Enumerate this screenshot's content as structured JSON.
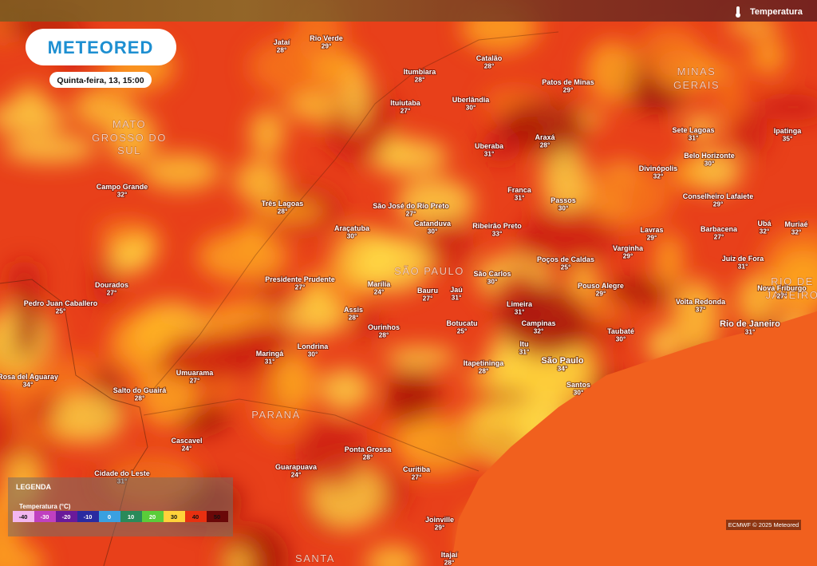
{
  "header": {
    "layer": "Temperatura",
    "logo": "METEORED",
    "datetime": "Quinta-feira, 13, 15:00"
  },
  "regions": [
    "MATO",
    "GROSSO DO",
    "SUL",
    "MINAS",
    "GERAIS",
    "SÃO PAULO",
    "PARANÁ",
    "RIO DE",
    "JANEIRO",
    "SANTA"
  ],
  "cities": [
    {
      "name": "Jataí",
      "temp": "28°"
    },
    {
      "name": "Rio Verde",
      "temp": "29°"
    },
    {
      "name": "Itumbiara",
      "temp": "28°"
    },
    {
      "name": "Catalão",
      "temp": "28°"
    },
    {
      "name": "Patos de Minas",
      "temp": "29°"
    },
    {
      "name": "Ituiutaba",
      "temp": "27°"
    },
    {
      "name": "Uberlândia",
      "temp": "30°"
    },
    {
      "name": "Uberaba",
      "temp": "31°"
    },
    {
      "name": "Araxá",
      "temp": "28°"
    },
    {
      "name": "Sete Lagoas",
      "temp": "31°"
    },
    {
      "name": "Ipatinga",
      "temp": "35°"
    },
    {
      "name": "Belo Horizonte",
      "temp": "30°"
    },
    {
      "name": "Divinópolis",
      "temp": "32°"
    },
    {
      "name": "Campo Grande",
      "temp": "32°"
    },
    {
      "name": "Três Lagoas",
      "temp": "28°"
    },
    {
      "name": "São José do Rio Preto",
      "temp": "27°"
    },
    {
      "name": "Franca",
      "temp": "31°"
    },
    {
      "name": "Passos",
      "temp": "30°"
    },
    {
      "name": "Conselheiro Lafaiete",
      "temp": "29°"
    },
    {
      "name": "Catanduva",
      "temp": "30°"
    },
    {
      "name": "Ribeirão Preto",
      "temp": "33°"
    },
    {
      "name": "Araçatuba",
      "temp": "30°"
    },
    {
      "name": "Ubá",
      "temp": "32°"
    },
    {
      "name": "Muriaé",
      "temp": "32°"
    },
    {
      "name": "Lavras",
      "temp": "29°"
    },
    {
      "name": "Barbacena",
      "temp": "27°"
    },
    {
      "name": "Varginha",
      "temp": "29°"
    },
    {
      "name": "Poços de Caldas",
      "temp": "25°"
    },
    {
      "name": "Juiz de Fora",
      "temp": "31°"
    },
    {
      "name": "São Carlos",
      "temp": "30°"
    },
    {
      "name": "Presidente Prudente",
      "temp": "27°"
    },
    {
      "name": "Marília",
      "temp": "24°"
    },
    {
      "name": "Pouso Alegre",
      "temp": "29°"
    },
    {
      "name": "Bauru",
      "temp": "27°"
    },
    {
      "name": "Jaú",
      "temp": "31°"
    },
    {
      "name": "Nova Friburgo",
      "temp": "27°"
    },
    {
      "name": "Dourados",
      "temp": "27°"
    },
    {
      "name": "Pedro Juan Caballero",
      "temp": "25°"
    },
    {
      "name": "Limeira",
      "temp": "31°"
    },
    {
      "name": "Volta Redonda",
      "temp": "37°"
    },
    {
      "name": "Assis",
      "temp": "28°"
    },
    {
      "name": "Rio de Janeiro",
      "temp": "31°"
    },
    {
      "name": "Ourinhos",
      "temp": "28°"
    },
    {
      "name": "Botucatu",
      "temp": "25°"
    },
    {
      "name": "Campinas",
      "temp": "32°"
    },
    {
      "name": "Taubaté",
      "temp": "30°"
    },
    {
      "name": "Londrina",
      "temp": "30°"
    },
    {
      "name": "Maringá",
      "temp": "31°"
    },
    {
      "name": "Itu",
      "temp": "31°"
    },
    {
      "name": "São Paulo",
      "temp": "34°"
    },
    {
      "name": "Itapetininga",
      "temp": "28°"
    },
    {
      "name": "Rosa del Aguaray",
      "temp": "34°"
    },
    {
      "name": "Umuarama",
      "temp": "27°"
    },
    {
      "name": "Santos",
      "temp": "30°"
    },
    {
      "name": "Salto do Guairá",
      "temp": "28°"
    },
    {
      "name": "Cascavel",
      "temp": "24°"
    },
    {
      "name": "Ponta Grossa",
      "temp": "28°"
    },
    {
      "name": "Guarapuava",
      "temp": "24°"
    },
    {
      "name": "Curitiba",
      "temp": "27°"
    },
    {
      "name": "Cidade do Leste",
      "temp": "31°"
    },
    {
      "name": "Joinville",
      "temp": "29°"
    },
    {
      "name": "Itajaí",
      "temp": "28°"
    }
  ],
  "legend": {
    "title": "LEGENDA",
    "subtitle": "Temperatura (°C)",
    "scale": [
      -40,
      -30,
      -20,
      -10,
      0,
      10,
      20,
      30,
      40,
      50
    ]
  },
  "credit": "ECMWF © 2025 Meteored"
}
